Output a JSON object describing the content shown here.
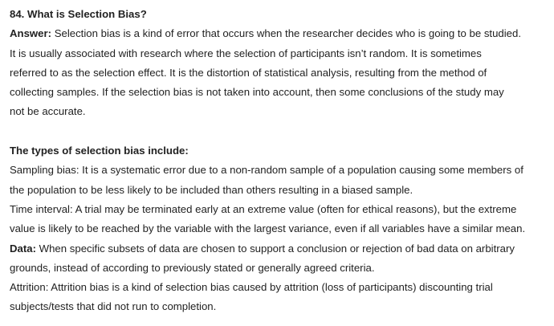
{
  "question": {
    "title": "84. What is Selection Bias?"
  },
  "answer": {
    "label": "Answer:",
    "lines": [
      " Selection bias is a kind of error that occurs when the researcher decides who is going to be studied.",
      "It is usually associated with research where the selection of participants isn’t random. It is sometimes",
      "referred to as the selection effect. It is the distortion of statistical analysis, resulting from the method of",
      "collecting samples. If the selection bias is not taken into account, then some conclusions of the study may",
      "not be accurate."
    ]
  },
  "types": {
    "heading": "The types of selection bias include:",
    "sampling": [
      "Sampling bias: It is a systematic error due to a non-random sample of a population causing some members of",
      "the population to be less likely to be included than others resulting in a biased sample."
    ],
    "time_interval": [
      "Time interval: A trial may be terminated early at an extreme value (often for ethical reasons), but the extreme",
      "value is likely to be reached by the variable with the largest variance, even if all variables have a similar mean."
    ],
    "data": {
      "label": "Data:",
      "lines": [
        " When specific subsets of data are chosen to support a conclusion or rejection of bad data on arbitrary",
        "grounds, instead of according to previously stated or generally agreed criteria."
      ]
    },
    "attrition": [
      "Attrition: Attrition bias is a kind of selection bias caused by attrition (loss of participants) discounting trial",
      "subjects/tests that did not run to completion."
    ]
  }
}
